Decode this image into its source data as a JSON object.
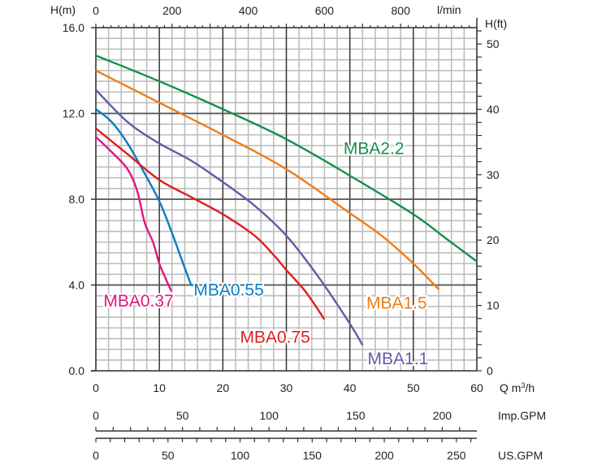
{
  "chart_data": {
    "type": "line",
    "title": "",
    "xlabel": "Q m³/h",
    "ylabel": "H(m)",
    "xlim": [
      0,
      60
    ],
    "ylim": [
      0,
      16
    ],
    "x_ticks": [
      0,
      10,
      20,
      30,
      40,
      50,
      60
    ],
    "y_ticks": [
      "0.0",
      "4.0",
      "8.0",
      "12.0",
      "16.0"
    ],
    "y_tick_values": [
      0,
      4,
      8,
      12,
      16
    ],
    "grid": true,
    "grid_minor_x_step": 2,
    "grid_minor_y_step": 0.5,
    "secondary_axes": {
      "top": {
        "label": "l/min",
        "ticks": [
          0,
          200,
          400,
          600,
          800
        ],
        "minor_step": 20,
        "factor_per_m3h": 16.6667
      },
      "right": {
        "label": "H(ft)",
        "ticks": [
          0,
          10,
          20,
          30,
          40,
          50
        ],
        "minor_step": 2,
        "factor_per_m": 3.28084
      },
      "imp_gpm": {
        "label": "Imp.GPM",
        "ticks": [
          0,
          50,
          100,
          150,
          200
        ],
        "minor_step": 10,
        "factor_per_m3h": 3.6662
      },
      "us_gpm": {
        "label": "US.GPM",
        "ticks": [
          0,
          50,
          100,
          150,
          200,
          250
        ],
        "minor_step": 10,
        "factor_per_m3h": 4.4029
      }
    },
    "series": [
      {
        "name": "MBA0.37",
        "color": "#e0157f",
        "x": [
          0,
          2.5,
          5,
          6.5,
          7.7,
          9,
          10,
          11,
          11.9
        ],
        "y": [
          10.9,
          10.2,
          9.4,
          8.4,
          6.9,
          6.0,
          5.0,
          4.3,
          3.7
        ],
        "label_at": [
          1.2,
          3.0
        ]
      },
      {
        "name": "MBA0.55",
        "color": "#0a7cc1",
        "x": [
          0,
          2.5,
          5,
          7.5,
          10,
          11.9,
          13.5,
          15
        ],
        "y": [
          12.2,
          11.6,
          10.6,
          9.3,
          7.9,
          6.5,
          5.2,
          4.0
        ],
        "label_at": [
          15.4,
          3.5
        ]
      },
      {
        "name": "MBA0.75",
        "color": "#dd1f1f",
        "x": [
          0,
          5,
          10,
          15,
          20,
          25,
          28,
          30,
          33,
          36
        ],
        "y": [
          11.3,
          10.1,
          8.9,
          8.1,
          7.3,
          6.3,
          5.4,
          4.7,
          3.7,
          2.4
        ],
        "label_at": [
          22.7,
          1.3
        ]
      },
      {
        "name": "MBA1.1",
        "color": "#635ca8",
        "x": [
          0,
          5,
          10,
          15,
          20,
          25,
          30,
          35,
          40,
          42
        ],
        "y": [
          13.1,
          11.6,
          10.6,
          9.8,
          8.8,
          7.7,
          6.3,
          4.4,
          2.2,
          1.2
        ],
        "label_at": [
          42.8,
          0.3
        ]
      },
      {
        "name": "MBA1.5",
        "color": "#f07d15",
        "x": [
          0,
          10,
          20,
          30,
          40,
          45,
          50,
          54
        ],
        "y": [
          14.0,
          12.5,
          11.0,
          9.4,
          7.35,
          6.3,
          5.0,
          3.8
        ],
        "label_at": [
          42.6,
          2.9
        ]
      },
      {
        "name": "MBA2.2",
        "color": "#11914b",
        "x": [
          0,
          10,
          20,
          30,
          40,
          50,
          55,
          60
        ],
        "y": [
          14.7,
          13.5,
          12.2,
          10.8,
          9.1,
          7.3,
          6.2,
          5.1
        ],
        "label_at": [
          39.0,
          10.1
        ]
      }
    ]
  }
}
